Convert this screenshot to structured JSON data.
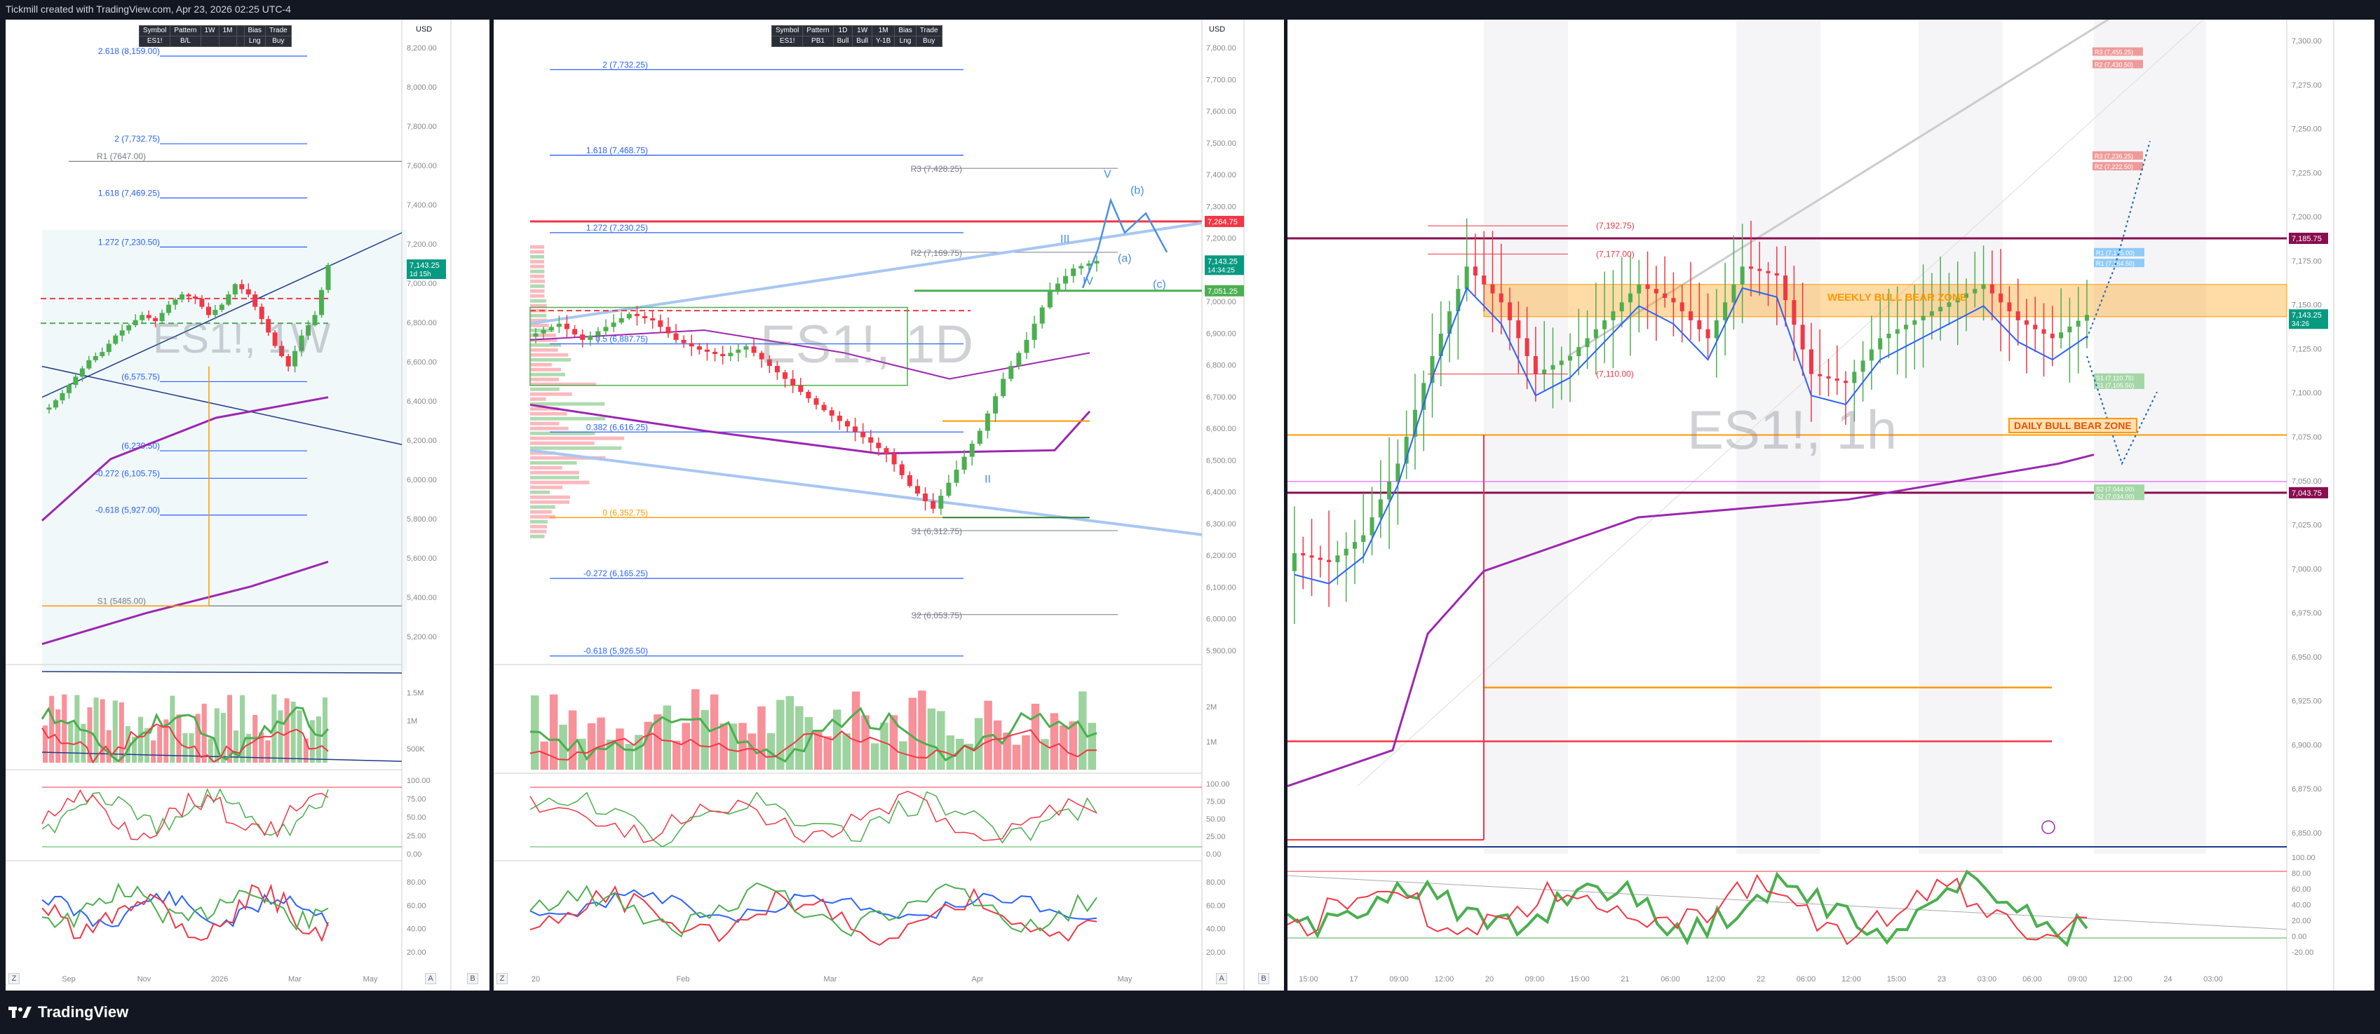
{
  "header": {
    "text": "Tickmill created with TradingView.com, Apr 23, 2026 02:25 UTC-4"
  },
  "footer": {
    "brand": "TradingView"
  },
  "colors": {
    "up": "#4caf50",
    "down": "#f23645",
    "fib": "#2962ff",
    "pivot": "#787b86",
    "orange": "#ff9800",
    "purple": "#9c27b0"
  },
  "axis_buttons": {
    "auto": "A",
    "bars": "B",
    "zoom": "Z"
  },
  "currency": "USD",
  "panels": [
    {
      "id": "weekly",
      "watermark": "ES1!, 1W",
      "table": {
        "headers": [
          "Symbol",
          "Pattern",
          "1W",
          "1M",
          "",
          "Bias",
          "Trade"
        ],
        "values": [
          "ES1!",
          "B/L",
          "",
          "",
          "",
          "Lng",
          "Buy"
        ]
      },
      "levels": [
        {
          "label": "2.618 (8,159.00)",
          "color": "#2962ff"
        },
        {
          "label": "2 (7,732.75)",
          "color": "#2962ff"
        },
        {
          "label": "R1 (7647.00)",
          "color": "#787b86"
        },
        {
          "label": "1.618 (7,469.25)",
          "color": "#2962ff"
        },
        {
          "label": "1.272 (7,230.50)",
          "color": "#2962ff"
        },
        {
          "label": "(6,575.75)",
          "color": "#2962ff"
        },
        {
          "label": "(6,239.50)",
          "color": "#2962ff"
        },
        {
          "label": "-0.272 (6,105.75)",
          "color": "#2962ff"
        },
        {
          "label": "-0.618 (5,927.00)",
          "color": "#2962ff"
        },
        {
          "label": "S1 (5485.00)",
          "color": "#787b86"
        }
      ],
      "price_badges": [
        {
          "text": "7,143.25",
          "sub": "1d 15h",
          "color": "#089981"
        }
      ],
      "axis_ticks": [
        "8,200.00",
        "8,000.00",
        "7,800.00",
        "7,600.00",
        "7,400.00",
        "7,200.00",
        "7,000.00",
        "6,800.00",
        "6,600.00",
        "6,400.00",
        "6,200.00",
        "6,000.00",
        "5,800.00",
        "5,600.00",
        "5,400.00",
        "5,200.00"
      ],
      "osc1_ticks": [
        "1.5M",
        "1M",
        "500K"
      ],
      "osc2_ticks": [
        "100.00",
        "75.00",
        "50.00",
        "25.00",
        "0.00"
      ],
      "osc3_ticks": [
        "80.00",
        "60.00",
        "40.00",
        "20.00"
      ],
      "time_labels": [
        "Sep",
        "Nov",
        "2026",
        "Mar",
        "May"
      ]
    },
    {
      "id": "daily",
      "watermark": "ES1!, 1D",
      "table": {
        "headers": [
          "Symbol",
          "Pattern",
          "1D",
          "1W",
          "1M",
          "Bias",
          "Trade"
        ],
        "values": [
          "ES1!",
          "PB1",
          "Bull",
          "Bull",
          "Y-1B",
          "Lng",
          "Buy"
        ]
      },
      "levels": [
        {
          "label": "2 (7,732.25)",
          "color": "#2962ff"
        },
        {
          "label": "1.618 (7,468.75)",
          "color": "#2962ff"
        },
        {
          "label": "R3 (7,428.25)",
          "color": "#787b86"
        },
        {
          "label": "1.272 (7,230.25)",
          "color": "#2962ff"
        },
        {
          "label": "R2 (7,169.75)",
          "color": "#787b86"
        },
        {
          "label": "0.5 (6,887.75)",
          "color": "#2962ff"
        },
        {
          "label": "0.382 (6,616.25)",
          "color": "#2962ff"
        },
        {
          "label": "0 (6,352.75)",
          "color": "#ff9800"
        },
        {
          "label": "S1 (6,312.75)",
          "color": "#787b86"
        },
        {
          "label": "-0.272 (6,165.25)",
          "color": "#2962ff"
        },
        {
          "label": "S2 (6,053.75)",
          "color": "#787b86"
        },
        {
          "label": "-0.618 (5,926.50)",
          "color": "#2962ff"
        }
      ],
      "wave_labels": [
        "V",
        "(b)",
        "III",
        "(a)",
        "IV",
        "(c)",
        "II"
      ],
      "price_badges": [
        {
          "text": "7,264.75",
          "color": "#f23645"
        },
        {
          "text": "7,143.25",
          "sub": "14:34:25",
          "color": "#089981"
        },
        {
          "text": "7,051.25",
          "color": "#4caf50"
        }
      ],
      "axis_ticks": [
        "7,800.00",
        "7,700.00",
        "7,600.00",
        "7,500.00",
        "7,400.00",
        "7,300.00",
        "7,200.00",
        "7,100.00",
        "7,000.00",
        "6,900.00",
        "6,800.00",
        "6,700.00",
        "6,600.00",
        "6,500.00",
        "6,400.00",
        "6,300.00",
        "6,200.00",
        "6,100.00",
        "6,000.00",
        "5,900.00"
      ],
      "osc1_ticks": [
        "2M",
        "1M"
      ],
      "osc2_ticks": [
        "100.00",
        "75.00",
        "50.00",
        "25.00",
        "0.00"
      ],
      "osc3_ticks": [
        "80.00",
        "60.00",
        "40.00",
        "20.00"
      ],
      "time_labels": [
        "20",
        "Feb",
        "Mar",
        "Apr",
        "May"
      ]
    },
    {
      "id": "hourly",
      "watermark": "ES1!, 1h",
      "levels": [
        {
          "label": "(7,192.75)",
          "color": "#f23645"
        },
        {
          "label": "(7,177.00)",
          "color": "#f23645"
        },
        {
          "label": "(7,110.00)",
          "color": "#f23645"
        }
      ],
      "zones": [
        {
          "label": "WEEKLY BULL BEAR ZONE",
          "color": "#ff9800"
        },
        {
          "label": "DAILY BULL BEAR ZONE",
          "color": "#ff9800"
        }
      ],
      "target_boxes": [
        "R3 (7,455.25)",
        "R2 (7,430.50)",
        "R3 (7,236.25)",
        "R2 (7,222.50)",
        "R1 (7,175.00)",
        "R1 (7,164.50)",
        "S1 (7,110.75)",
        "S1 (7,105.50)",
        "S2 (7,044.00)",
        "S2 (7,034.00)"
      ],
      "price_badges": [
        {
          "text": "7,185.75",
          "color": "#880e4f"
        },
        {
          "text": "7,143.25",
          "sub": "34:26",
          "color": "#089981"
        },
        {
          "text": "7,043.75",
          "color": "#880e4f"
        }
      ],
      "axis_ticks": [
        "7,300.00",
        "7,275.00",
        "7,250.00",
        "7,225.00",
        "7,200.00",
        "7,175.00",
        "7,150.00",
        "7,125.00",
        "7,100.00",
        "7,075.00",
        "7,050.00",
        "7,025.00",
        "7,000.00",
        "6,975.00",
        "6,950.00",
        "6,925.00",
        "6,900.00",
        "6,875.00",
        "6,850.00"
      ],
      "osc_ticks": [
        "100.00",
        "80.00",
        "60.00",
        "40.00",
        "20.00",
        "0.00",
        "-20.00"
      ],
      "time_labels": [
        "15:00",
        "17",
        "09:00",
        "12:00",
        "20",
        "09:00",
        "15:00",
        "21",
        "06:00",
        "12:00",
        "22",
        "06:00",
        "12:00",
        "15:00",
        "23",
        "03:00",
        "06:00",
        "09:00",
        "12:00",
        "24",
        "03:00"
      ]
    }
  ],
  "chart_data": [
    {
      "type": "line",
      "title": "ES1!, 1W",
      "ylim": [
        5200,
        8200
      ],
      "series": [
        {
          "name": "ES1!",
          "values": [
            6450,
            6520,
            6600,
            6680,
            6720,
            6800,
            6850,
            6900,
            6870,
            6950,
            7000,
            6980,
            6900,
            6950,
            7050,
            7000,
            6880,
            6750,
            6650,
            6800,
            6900,
            7143
          ]
        }
      ]
    },
    {
      "type": "line",
      "title": "ES1!, 1D",
      "ylim": [
        5900,
        7800
      ],
      "series": [
        {
          "name": "ES1!",
          "values": [
            6920,
            6950,
            6900,
            6940,
            6980,
            6960,
            6900,
            6870,
            6850,
            6880,
            6820,
            6760,
            6700,
            6650,
            6600,
            6550,
            6450,
            6380,
            6500,
            6620,
            6780,
            6900,
            7050,
            7120,
            7143
          ]
        }
      ]
    },
    {
      "type": "line",
      "title": "ES1!, 1h",
      "ylim": [
        6850,
        7300
      ],
      "series": [
        {
          "name": "ES1!",
          "values": [
            7010,
            7005,
            7020,
            7060,
            7120,
            7170,
            7150,
            7110,
            7120,
            7140,
            7160,
            7150,
            7130,
            7170,
            7165,
            7110,
            7105,
            7130,
            7140,
            7150,
            7160,
            7140,
            7130,
            7143
          ]
        }
      ]
    }
  ]
}
